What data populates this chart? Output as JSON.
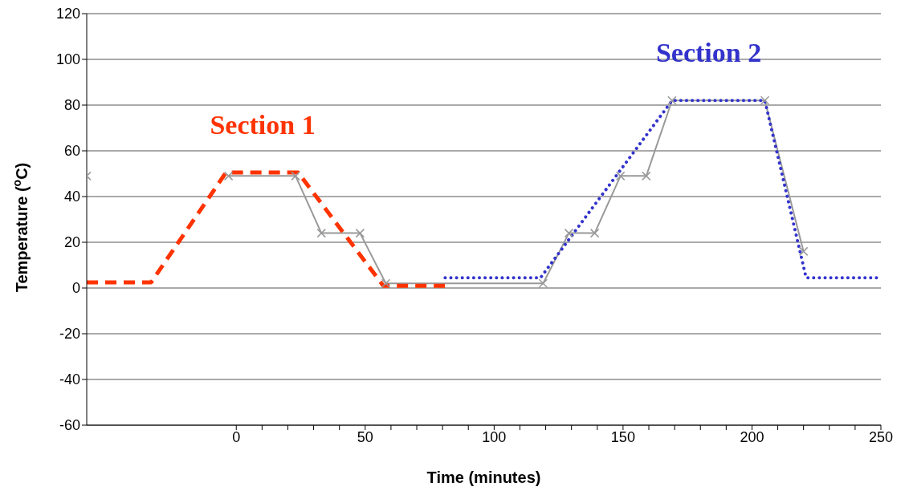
{
  "chart_data": {
    "type": "line",
    "xlabel": "Time (minutes)",
    "ylabel": "Temperature ($^{o}$C)",
    "xlim": [
      -58,
      250
    ],
    "xticks": [
      0,
      {
        "value": 10,
        "label": null
      },
      {
        "value": 20,
        "label": null
      },
      {
        "value": 30,
        "label": null
      },
      {
        "value": 40,
        "label": null
      },
      50,
      {
        "value": 60,
        "label": null
      },
      {
        "value": 70,
        "label": null
      },
      {
        "value": 80,
        "label": null
      },
      {
        "value": 90,
        "label": null
      },
      100,
      {
        "value": 110,
        "label": null
      },
      {
        "value": 120,
        "label": null
      },
      {
        "value": 130,
        "label": null
      },
      {
        "value": 140,
        "label": null
      },
      150,
      {
        "value": 160,
        "label": null
      },
      {
        "value": 170,
        "label": null
      },
      {
        "value": 180,
        "label": null
      },
      {
        "value": 190,
        "label": null
      },
      200,
      {
        "value": 210,
        "label": null
      },
      {
        "value": 220,
        "label": null
      },
      {
        "value": 230,
        "label": null
      },
      {
        "value": 240,
        "label": null
      },
      250
    ],
    "ylim": [
      -60,
      120
    ],
    "yticks": [
      -60,
      -40,
      -20,
      0,
      20,
      40,
      60,
      80,
      100,
      120
    ],
    "grid": "y",
    "legend": false,
    "series": [
      {
        "color": "#999999",
        "marker": "cross",
        "line_style": "solid",
        "x": [
          -58,
          -50,
          -3,
          23,
          33,
          48,
          58,
          119,
          129,
          139,
          149,
          159,
          169,
          205,
          220
        ],
        "values": [
          49,
          null,
          49,
          49,
          24,
          24,
          2,
          2,
          24,
          24,
          49,
          49,
          82,
          82,
          16
        ]
      },
      {
        "name": "Section 1",
        "color": "#ff3300",
        "marker": "none",
        "line_style": "dashed",
        "x": [
          -58,
          -33,
          -4,
          24,
          57,
          81
        ],
        "values": [
          2.5,
          2.5,
          50.5,
          50.5,
          1,
          1
        ]
      },
      {
        "name": "Section 2",
        "color": "#3333cc",
        "marker": "none",
        "line_style": "dotted",
        "x": [
          81,
          118,
          169,
          205,
          221,
          250
        ],
        "values": [
          4.5,
          4.5,
          82,
          82,
          4.5,
          4.5
        ]
      }
    ]
  }
}
